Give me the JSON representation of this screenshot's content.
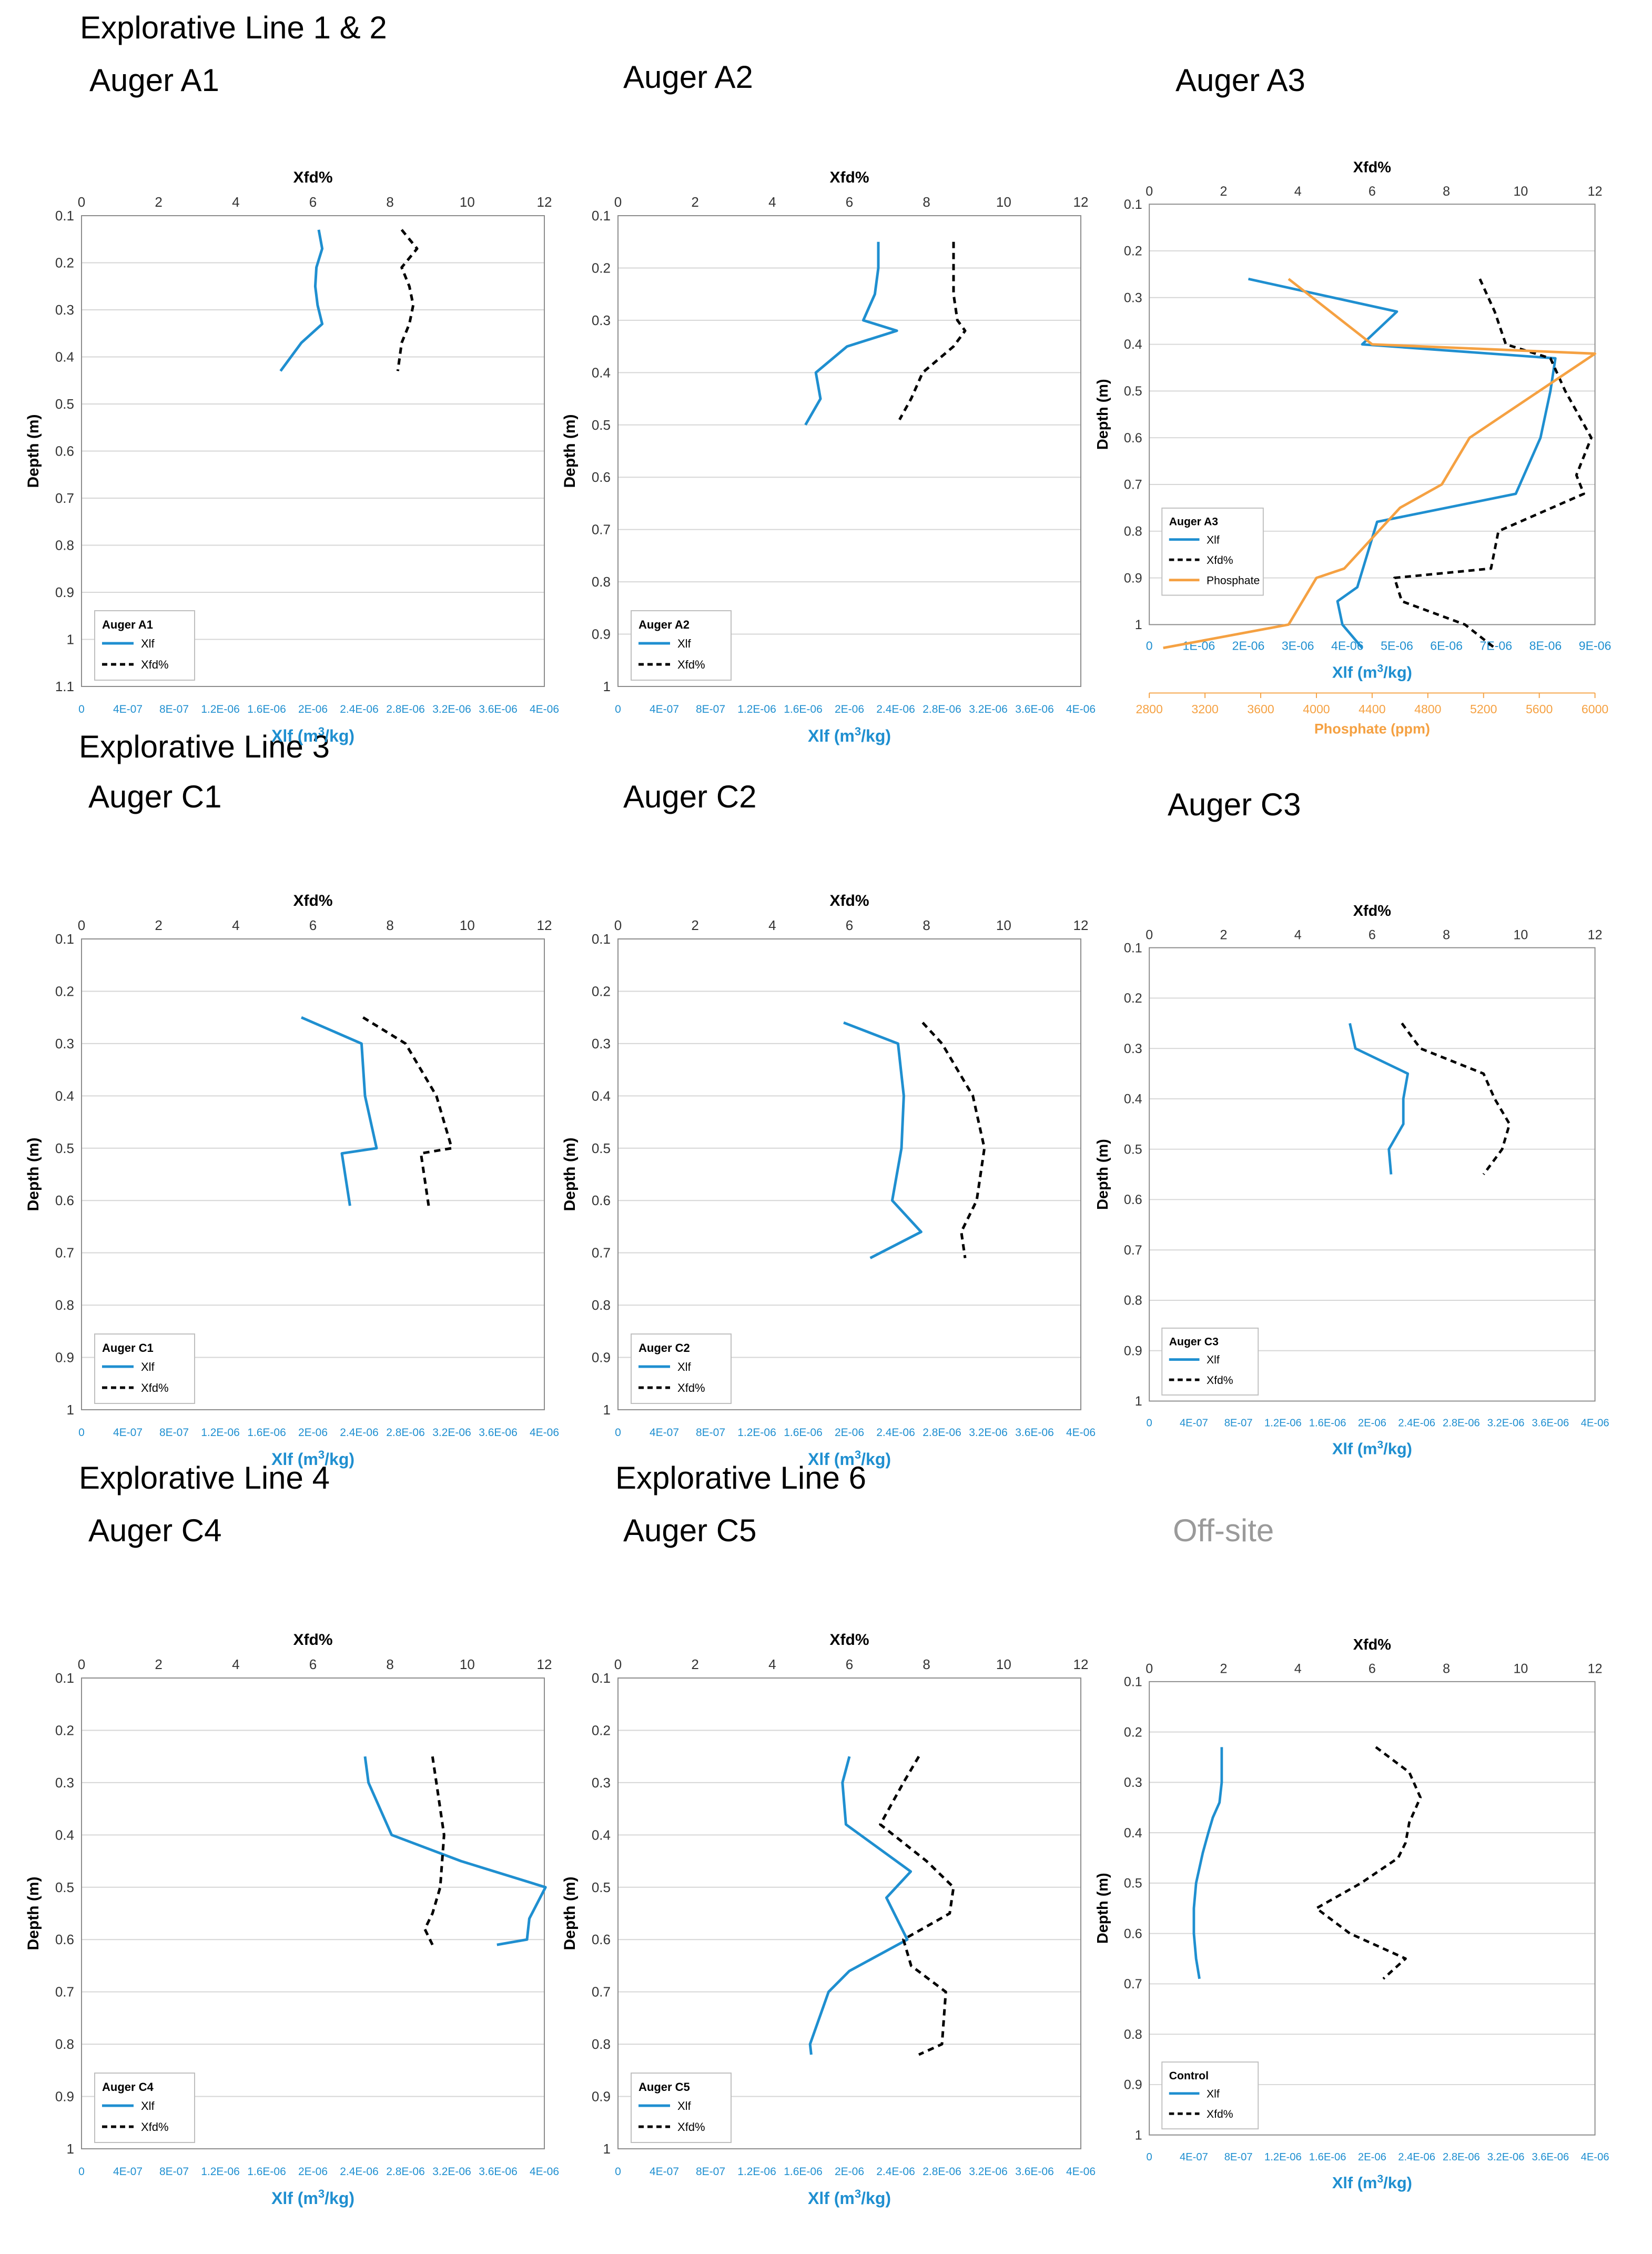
{
  "colors": {
    "xlf": "#1f8fd0",
    "xfd": "#000000",
    "phosphate": "#f5a142",
    "grid": "#d6d6d6",
    "blue_axis": "#1f8fd0"
  },
  "section_headings": [
    "Explorative Line 1 & 2",
    "Explorative Line 3",
    "Explorative Line 4",
    "Explorative Line 6"
  ],
  "common": {
    "top_axis_title": "Xfd%",
    "left_axis_title": "Depth (m)",
    "bottom_axis_title_prefix": "Xlf (m",
    "bottom_axis_title_sup": "3",
    "bottom_axis_title_suffix": "/kg)",
    "top_ticks": [
      "0",
      "2",
      "4",
      "6",
      "8",
      "10",
      "12"
    ],
    "bottom_ticks": [
      "0",
      "4E-07",
      "8E-07",
      "1.2E-06",
      "1.6E-06",
      "2E-06",
      "2.4E-06",
      "2.8E-06",
      "3.2E-06",
      "3.6E-06",
      "4E-06"
    ],
    "legend_xlf": "Xlf",
    "legend_xfd": "Xfd%"
  },
  "chart_data": [
    {
      "id": "A1",
      "type": "line",
      "heading": "Auger A1",
      "legend_title": "Auger A1",
      "ylim": [
        0.1,
        1.1
      ],
      "y_ticks": [
        "0.1",
        "0.2",
        "0.3",
        "0.4",
        "0.5",
        "0.6",
        "0.7",
        "0.8",
        "0.9",
        "1",
        "1.1"
      ],
      "xfd_lim": [
        0,
        12
      ],
      "xlf_lim": [
        0,
        4e-06
      ],
      "series": [
        {
          "name": "Xlf",
          "depth": [
            0.13,
            0.17,
            0.21,
            0.25,
            0.29,
            0.33,
            0.37,
            0.43
          ],
          "values": [
            2.05e-06,
            2.08e-06,
            2.03e-06,
            2.02e-06,
            2.04e-06,
            2.08e-06,
            1.9e-06,
            1.72e-06
          ]
        },
        {
          "name": "Xfd%",
          "depth": [
            0.13,
            0.17,
            0.21,
            0.25,
            0.29,
            0.33,
            0.37,
            0.43
          ],
          "values": [
            8.3,
            8.7,
            8.3,
            8.5,
            8.6,
            8.5,
            8.3,
            8.2
          ]
        }
      ]
    },
    {
      "id": "A2",
      "type": "line",
      "heading": "Auger A2",
      "legend_title": "Auger A2",
      "ylim": [
        0.1,
        1.0
      ],
      "y_ticks": [
        "0.1",
        "0.2",
        "0.3",
        "0.4",
        "0.5",
        "0.6",
        "0.7",
        "0.8",
        "0.9",
        "1"
      ],
      "xfd_lim": [
        0,
        12
      ],
      "xlf_lim": [
        0,
        4e-06
      ],
      "series": [
        {
          "name": "Xlf",
          "depth": [
            0.15,
            0.2,
            0.25,
            0.3,
            0.32,
            0.35,
            0.4,
            0.45,
            0.5
          ],
          "values": [
            2.25e-06,
            2.25e-06,
            2.22e-06,
            2.12e-06,
            2.41e-06,
            1.98e-06,
            1.71e-06,
            1.75e-06,
            1.62e-06
          ]
        },
        {
          "name": "Xfd%",
          "depth": [
            0.15,
            0.2,
            0.25,
            0.3,
            0.32,
            0.35,
            0.4,
            0.45,
            0.49
          ],
          "values": [
            8.7,
            8.7,
            8.7,
            8.8,
            9.0,
            8.7,
            7.9,
            7.6,
            7.3
          ]
        }
      ]
    },
    {
      "id": "A3",
      "type": "line",
      "heading": "Auger A3",
      "legend_title": "Auger A3",
      "ylim": [
        0.1,
        1.0
      ],
      "y_ticks": [
        "0.1",
        "0.2",
        "0.3",
        "0.4",
        "0.5",
        "0.6",
        "0.7",
        "0.8",
        "0.9",
        "1"
      ],
      "xfd_lim": [
        0,
        12
      ],
      "xlf_lim": [
        0,
        9e-06
      ],
      "bottom_ticks": [
        "0",
        "1E-06",
        "2E-06",
        "3E-06",
        "4E-06",
        "5E-06",
        "6E-06",
        "7E-06",
        "8E-06",
        "9E-06"
      ],
      "phosphate_axis": {
        "title": "Phosphate (ppm)",
        "lim": [
          2800,
          6000
        ],
        "ticks": [
          "2800",
          "3200",
          "3600",
          "4000",
          "4400",
          "4800",
          "5200",
          "5600",
          "6000"
        ]
      },
      "legend_phosphate": "Phosphate",
      "series": [
        {
          "name": "Xlf",
          "depth": [
            0.26,
            0.33,
            0.4,
            0.43,
            0.5,
            0.6,
            0.72,
            0.78,
            0.92,
            0.95,
            1.0,
            1.05
          ],
          "values": [
            2e-06,
            5e-06,
            4.3e-06,
            8.2e-06,
            8.1e-06,
            7.9e-06,
            7.4e-06,
            4.6e-06,
            4.2e-06,
            3.8e-06,
            3.9e-06,
            4.3e-06
          ]
        },
        {
          "name": "Xfd%",
          "depth": [
            0.26,
            0.33,
            0.4,
            0.43,
            0.5,
            0.6,
            0.68,
            0.72,
            0.8,
            0.88,
            0.9,
            0.95,
            1.0,
            1.05
          ],
          "values": [
            8.9,
            9.3,
            9.6,
            10.8,
            11.2,
            11.9,
            11.5,
            11.7,
            9.4,
            9.2,
            6.6,
            6.8,
            8.5,
            9.3
          ]
        },
        {
          "name": "Phosphate",
          "depth": [
            0.26,
            0.33,
            0.4,
            0.42,
            0.6,
            0.7,
            0.75,
            0.88,
            0.9,
            1.0,
            1.05
          ],
          "values": [
            3800,
            4100,
            4400,
            6000,
            5100,
            4900,
            4600,
            4200,
            4000,
            3800,
            2900
          ]
        }
      ]
    },
    {
      "id": "C1",
      "type": "line",
      "heading": "Auger C1",
      "legend_title": "Auger C1",
      "ylim": [
        0.1,
        1.0
      ],
      "y_ticks": [
        "0.1",
        "0.2",
        "0.3",
        "0.4",
        "0.5",
        "0.6",
        "0.7",
        "0.8",
        "0.9",
        "1"
      ],
      "xfd_lim": [
        0,
        12
      ],
      "xlf_lim": [
        0,
        4e-06
      ],
      "series": [
        {
          "name": "Xlf",
          "depth": [
            0.25,
            0.3,
            0.4,
            0.5,
            0.51,
            0.61
          ],
          "values": [
            1.9e-06,
            2.42e-06,
            2.45e-06,
            2.55e-06,
            2.25e-06,
            2.32e-06
          ]
        },
        {
          "name": "Xfd%",
          "depth": [
            0.25,
            0.3,
            0.4,
            0.5,
            0.51,
            0.61
          ],
          "values": [
            7.3,
            8.4,
            9.2,
            9.6,
            8.8,
            9.0
          ]
        }
      ]
    },
    {
      "id": "C2",
      "type": "line",
      "heading": "Auger C2",
      "legend_title": "Auger C2",
      "ylim": [
        0.1,
        1.0
      ],
      "y_ticks": [
        "0.1",
        "0.2",
        "0.3",
        "0.4",
        "0.5",
        "0.6",
        "0.7",
        "0.8",
        "0.9",
        "1"
      ],
      "xfd_lim": [
        0,
        12
      ],
      "xlf_lim": [
        0,
        4e-06
      ],
      "series": [
        {
          "name": "Xlf",
          "depth": [
            0.26,
            0.3,
            0.4,
            0.5,
            0.6,
            0.66,
            0.71
          ],
          "values": [
            1.95e-06,
            2.42e-06,
            2.47e-06,
            2.45e-06,
            2.37e-06,
            2.62e-06,
            2.18e-06
          ]
        },
        {
          "name": "Xfd%",
          "depth": [
            0.26,
            0.3,
            0.4,
            0.5,
            0.6,
            0.66,
            0.71
          ],
          "values": [
            7.9,
            8.4,
            9.2,
            9.5,
            9.3,
            8.9,
            9.0
          ]
        }
      ]
    },
    {
      "id": "C3",
      "type": "line",
      "heading": "Auger C3",
      "legend_title": "Auger C3",
      "ylim": [
        0.1,
        1.0
      ],
      "y_ticks": [
        "0.1",
        "0.2",
        "0.3",
        "0.4",
        "0.5",
        "0.6",
        "0.7",
        "0.8",
        "0.9",
        "1"
      ],
      "xfd_lim": [
        0,
        12
      ],
      "xlf_lim": [
        0,
        4e-06
      ],
      "series": [
        {
          "name": "Xlf",
          "depth": [
            0.25,
            0.3,
            0.35,
            0.4,
            0.45,
            0.5,
            0.55
          ],
          "values": [
            1.8e-06,
            1.85e-06,
            2.32e-06,
            2.28e-06,
            2.28e-06,
            2.15e-06,
            2.17e-06
          ]
        },
        {
          "name": "Xfd%",
          "depth": [
            0.25,
            0.3,
            0.35,
            0.4,
            0.45,
            0.5,
            0.55
          ],
          "values": [
            6.8,
            7.3,
            9.0,
            9.3,
            9.7,
            9.5,
            9.0
          ]
        }
      ]
    },
    {
      "id": "C4",
      "type": "line",
      "heading": "Auger C4",
      "legend_title": "Auger C4",
      "ylim": [
        0.1,
        1.0
      ],
      "y_ticks": [
        "0.1",
        "0.2",
        "0.3",
        "0.4",
        "0.5",
        "0.6",
        "0.7",
        "0.8",
        "0.9",
        "1"
      ],
      "xfd_lim": [
        0,
        12
      ],
      "xlf_lim": [
        0,
        4e-06
      ],
      "series": [
        {
          "name": "Xlf",
          "depth": [
            0.25,
            0.3,
            0.4,
            0.45,
            0.5,
            0.56,
            0.6,
            0.61
          ],
          "values": [
            2.45e-06,
            2.48e-06,
            2.68e-06,
            3.28e-06,
            4.01e-06,
            3.87e-06,
            3.85e-06,
            3.59e-06
          ]
        },
        {
          "name": "Xfd%",
          "depth": [
            0.25,
            0.3,
            0.4,
            0.5,
            0.55,
            0.58,
            0.61
          ],
          "values": [
            9.1,
            9.2,
            9.4,
            9.3,
            9.1,
            8.9,
            9.1
          ]
        }
      ]
    },
    {
      "id": "C5",
      "type": "line",
      "heading": "Auger C5",
      "legend_title": "Auger C5",
      "ylim": [
        0.1,
        1.0
      ],
      "y_ticks": [
        "0.1",
        "0.2",
        "0.3",
        "0.4",
        "0.5",
        "0.6",
        "0.7",
        "0.8",
        "0.9",
        "1"
      ],
      "xfd_lim": [
        0,
        12
      ],
      "xlf_lim": [
        0,
        4e-06
      ],
      "series": [
        {
          "name": "Xlf",
          "depth": [
            0.25,
            0.3,
            0.38,
            0.47,
            0.52,
            0.6,
            0.66,
            0.7,
            0.8,
            0.82
          ],
          "values": [
            2e-06,
            1.94e-06,
            1.97e-06,
            2.53e-06,
            2.32e-06,
            2.5e-06,
            2e-06,
            1.82e-06,
            1.66e-06,
            1.67e-06
          ]
        },
        {
          "name": "Xfd%",
          "depth": [
            0.25,
            0.3,
            0.38,
            0.45,
            0.5,
            0.55,
            0.6,
            0.65,
            0.7,
            0.8,
            0.82
          ],
          "values": [
            7.8,
            7.4,
            6.8,
            8.0,
            8.7,
            8.6,
            7.4,
            7.6,
            8.5,
            8.4,
            7.8
          ]
        }
      ]
    },
    {
      "id": "Control",
      "type": "line",
      "heading": "Off-site",
      "legend_title": "Control",
      "ylim": [
        0.1,
        1.0
      ],
      "y_ticks": [
        "0.1",
        "0.2",
        "0.3",
        "0.4",
        "0.5",
        "0.6",
        "0.7",
        "0.8",
        "0.9",
        "1"
      ],
      "xfd_lim": [
        0,
        12
      ],
      "xlf_lim": [
        0,
        4e-06
      ],
      "series": [
        {
          "name": "Xlf",
          "depth": [
            0.23,
            0.3,
            0.34,
            0.37,
            0.4,
            0.44,
            0.5,
            0.55,
            0.6,
            0.65,
            0.69
          ],
          "values": [
            6.5e-07,
            6.5e-07,
            6.3e-07,
            5.7e-07,
            5.3e-07,
            4.8e-07,
            4.2e-07,
            4e-07,
            4e-07,
            4.2e-07,
            4.5e-07
          ]
        },
        {
          "name": "Xfd%",
          "depth": [
            0.23,
            0.28,
            0.33,
            0.38,
            0.42,
            0.45,
            0.5,
            0.55,
            0.6,
            0.65,
            0.69
          ],
          "values": [
            6.1,
            7.0,
            7.3,
            7.0,
            6.9,
            6.7,
            5.7,
            4.5,
            5.4,
            6.9,
            6.3
          ]
        }
      ]
    }
  ]
}
